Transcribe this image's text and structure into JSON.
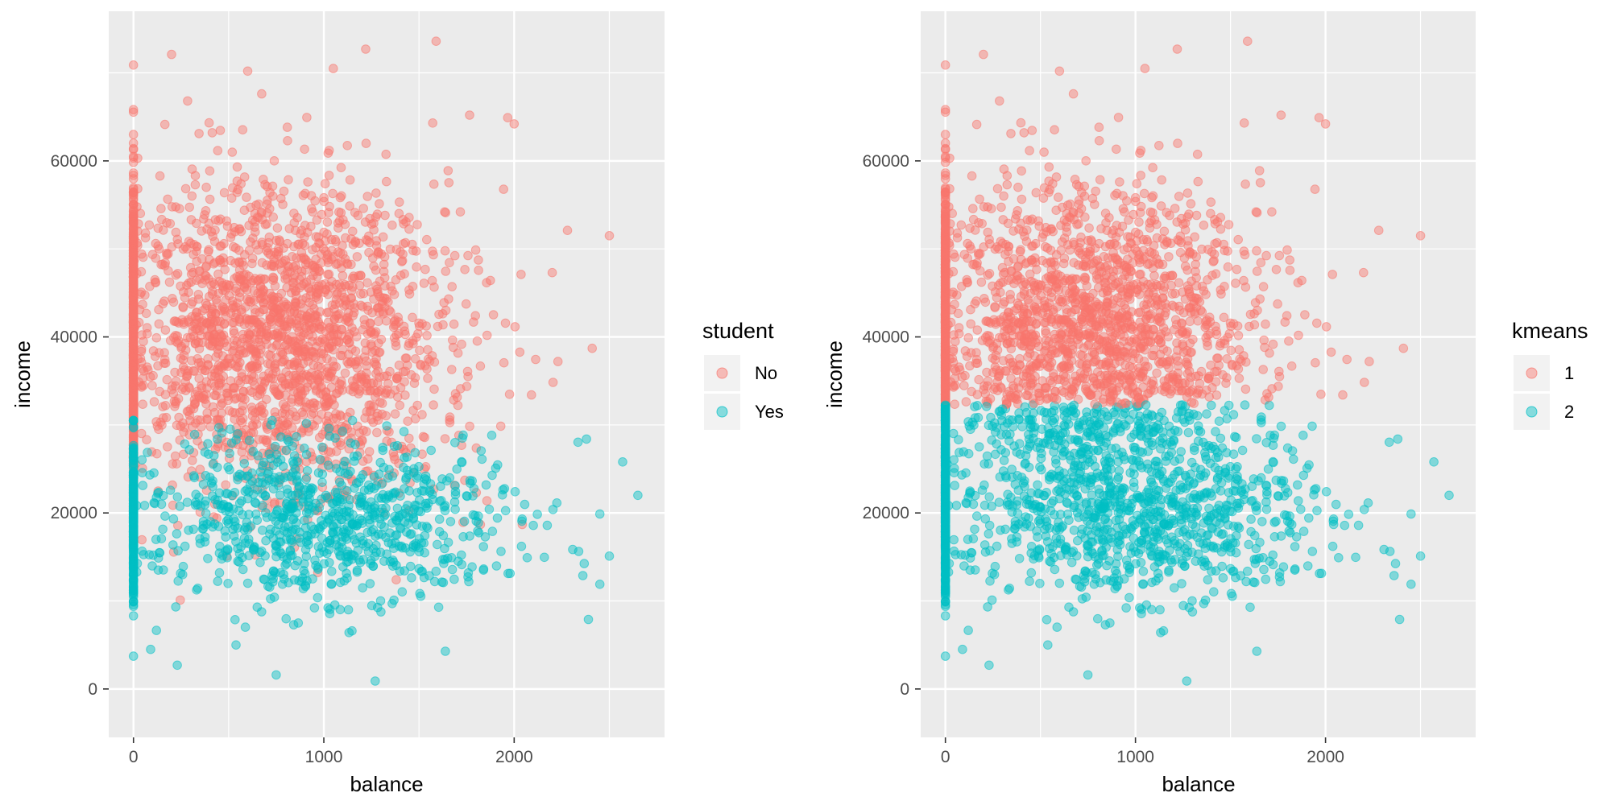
{
  "colors": {
    "panel_bg": "#EBEBEB",
    "grid": "#FFFFFF",
    "tick": "#333333",
    "series_1": "#F8766D",
    "series_2": "#00BFC4"
  },
  "chart_data": [
    {
      "type": "scatter",
      "title": "",
      "xlabel": "balance",
      "ylabel": "income",
      "xlim": [
        -130,
        2790
      ],
      "ylim": [
        -5500,
        77000
      ],
      "x_ticks": [
        0,
        1000,
        2000
      ],
      "x_tick_labels": [
        "0",
        "1000",
        "2000"
      ],
      "y_ticks": [
        0,
        20000,
        40000,
        60000
      ],
      "y_tick_labels": [
        "0",
        "20000",
        "40000",
        "60000"
      ],
      "grid": true,
      "point_alpha": 0.45,
      "legend": {
        "title": "student",
        "position": "right",
        "entries": [
          {
            "label": "No",
            "color": "#F8766D"
          },
          {
            "label": "Yes",
            "color": "#00BFC4"
          }
        ]
      },
      "series": [
        {
          "name": "No",
          "color": "#F8766D",
          "approx_count": 7056,
          "distribution": "income mean ~40000 (sd ~8900); balance mean ~745 (sd ~460), ~20% at 0",
          "notable_points": [
            {
              "x": 1590,
              "y": 73600
            },
            {
              "x": 1220,
              "y": 72700
            },
            {
              "x": 200,
              "y": 72100
            },
            {
              "x": 600,
              "y": 70200
            },
            {
              "x": 1050,
              "y": 70500
            },
            {
              "x": 2000,
              "y": 64200
            },
            {
              "x": 2280,
              "y": 52100
            },
            {
              "x": 2500,
              "y": 51500
            },
            {
              "x": 2200,
              "y": 47300
            },
            {
              "x": 2410,
              "y": 38700
            },
            {
              "x": 2230,
              "y": 37200
            }
          ]
        },
        {
          "name": "Yes",
          "color": "#00BFC4",
          "approx_count": 2944,
          "distribution": "income mean ~19300 (sd ~4600); balance mean ~988 (sd ~490), ~20% at 0",
          "notable_points": [
            {
              "x": 1270,
              "y": 900
            },
            {
              "x": 750,
              "y": 1600
            },
            {
              "x": 230,
              "y": 2700
            },
            {
              "x": 2650,
              "y": 22000
            },
            {
              "x": 2570,
              "y": 25800
            },
            {
              "x": 2380,
              "y": 28400
            },
            {
              "x": 2500,
              "y": 15100
            },
            {
              "x": 2450,
              "y": 11900
            },
            {
              "x": 2390,
              "y": 7900
            },
            {
              "x": 90,
              "y": 4500
            }
          ]
        }
      ]
    },
    {
      "type": "scatter",
      "title": "",
      "xlabel": "balance",
      "ylabel": "income",
      "xlim": [
        -130,
        2790
      ],
      "ylim": [
        -5500,
        77000
      ],
      "x_ticks": [
        0,
        1000,
        2000
      ],
      "x_tick_labels": [
        "0",
        "1000",
        "2000"
      ],
      "y_ticks": [
        0,
        20000,
        40000,
        60000
      ],
      "y_tick_labels": [
        "0",
        "20000",
        "40000",
        "60000"
      ],
      "grid": true,
      "point_alpha": 0.45,
      "cluster_boundary_income": 32300,
      "legend": {
        "title": "kmeans",
        "position": "right",
        "entries": [
          {
            "label": "1",
            "color": "#F8766D"
          },
          {
            "label": "2",
            "color": "#00BFC4"
          }
        ]
      },
      "series": [
        {
          "name": "1",
          "color": "#F8766D",
          "rule": "same points as left panel, income >= 32300"
        },
        {
          "name": "2",
          "color": "#00BFC4",
          "rule": "same points as left panel, income < 32300"
        }
      ]
    }
  ]
}
